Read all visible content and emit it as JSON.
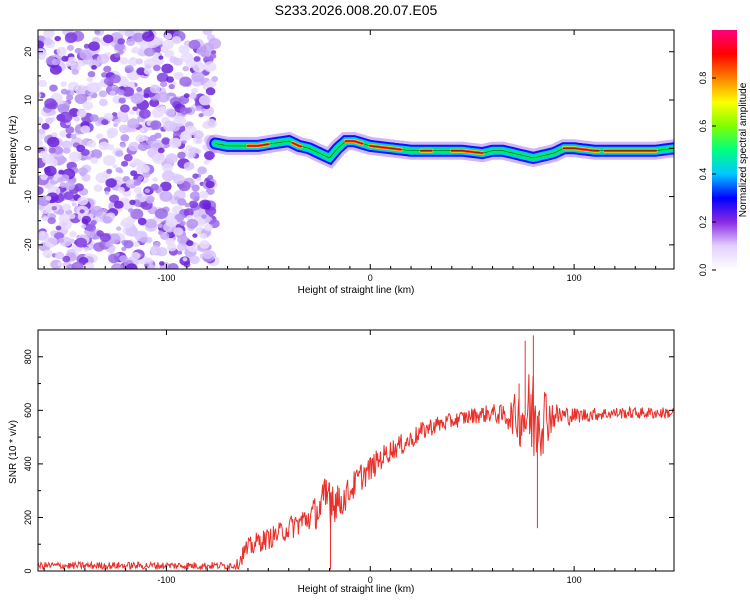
{
  "title": "S233.2026.008.20.07.E05",
  "chart_data": [
    {
      "type": "heatmap",
      "xlabel": "Height of straight line (km)",
      "ylabel": "Frequency (Hz)",
      "xlim": [
        -163,
        149
      ],
      "ylim": [
        -25,
        24.5
      ],
      "xticks": [
        -100,
        0,
        100
      ],
      "yticks": [
        -20,
        -10,
        0,
        10,
        20
      ],
      "noise_region_x": [
        -163,
        -76
      ],
      "signal_start_x": -76,
      "ridge": {
        "x": [
          -76,
          -70,
          -62,
          -55,
          -48,
          -40,
          -35,
          -30,
          -25,
          -20,
          -16,
          -12,
          -8,
          -4,
          0,
          10,
          20,
          30,
          45,
          55,
          60,
          65,
          70,
          75,
          80,
          85,
          90,
          95,
          100,
          110,
          120,
          130,
          140,
          149
        ],
        "y": [
          1,
          0.5,
          0.5,
          0.5,
          1,
          1.5,
          0.5,
          0,
          -1,
          -2,
          0,
          1.5,
          1.5,
          1,
          0.5,
          0,
          -0.5,
          -0.5,
          -0.5,
          -1,
          -0.5,
          -0.5,
          -1,
          -1.5,
          -2,
          -1.5,
          -1,
          0,
          0,
          -0.5,
          -0.5,
          -0.5,
          -0.5,
          0
        ]
      },
      "colorbar": {
        "label": "Normalized spectral amplitude",
        "range": [
          0,
          1
        ],
        "ticks": [
          "0.0",
          "0.2",
          "0.4",
          "0.6",
          "0.8"
        ],
        "tick_values": [
          0,
          0.2,
          0.4,
          0.6,
          0.8
        ],
        "colors": [
          "#ffffff",
          "#e3d0ff",
          "#8a2be2",
          "#0000ff",
          "#00c8ff",
          "#00ff80",
          "#80ff00",
          "#ffff00",
          "#ff8000",
          "#ff0000",
          "#ff0080"
        ]
      }
    },
    {
      "type": "line",
      "xlabel": "Height of straight line (km)",
      "ylabel": "SNR (10 * v/v)",
      "xlim": [
        -163,
        149
      ],
      "ylim": [
        0,
        900
      ],
      "xticks": [
        -100,
        0,
        100
      ],
      "yticks": [
        0,
        200,
        400,
        600,
        800
      ],
      "series": [
        {
          "name": "SNR",
          "color": "#e8302a",
          "x": [
            -163,
            -140,
            -120,
            -100,
            -80,
            -70,
            -65,
            -62,
            -55,
            -50,
            -45,
            -40,
            -35,
            -30,
            -25,
            -22,
            -20,
            -18,
            -15,
            -10,
            -5,
            0,
            5,
            10,
            15,
            20,
            25,
            30,
            40,
            50,
            60,
            65,
            70,
            75,
            80,
            85,
            90,
            100,
            110,
            120,
            130,
            140,
            149
          ],
          "values": [
            20,
            20,
            20,
            20,
            20,
            20,
            25,
            70,
            110,
            120,
            140,
            160,
            180,
            200,
            230,
            250,
            300,
            270,
            250,
            300,
            350,
            380,
            420,
            450,
            470,
            490,
            520,
            540,
            560,
            580,
            590,
            580,
            580,
            580,
            580,
            580,
            580,
            580,
            585,
            590,
            590,
            590,
            590
          ],
          "noise_amp": [
            14,
            14,
            14,
            14,
            14,
            14,
            20,
            40,
            40,
            40,
            40,
            45,
            50,
            55,
            70,
            110,
            150,
            90,
            60,
            55,
            55,
            50,
            45,
            40,
            40,
            38,
            36,
            35,
            30,
            30,
            35,
            40,
            70,
            140,
            200,
            140,
            50,
            30,
            25,
            22,
            22,
            22,
            22
          ]
        }
      ]
    }
  ]
}
